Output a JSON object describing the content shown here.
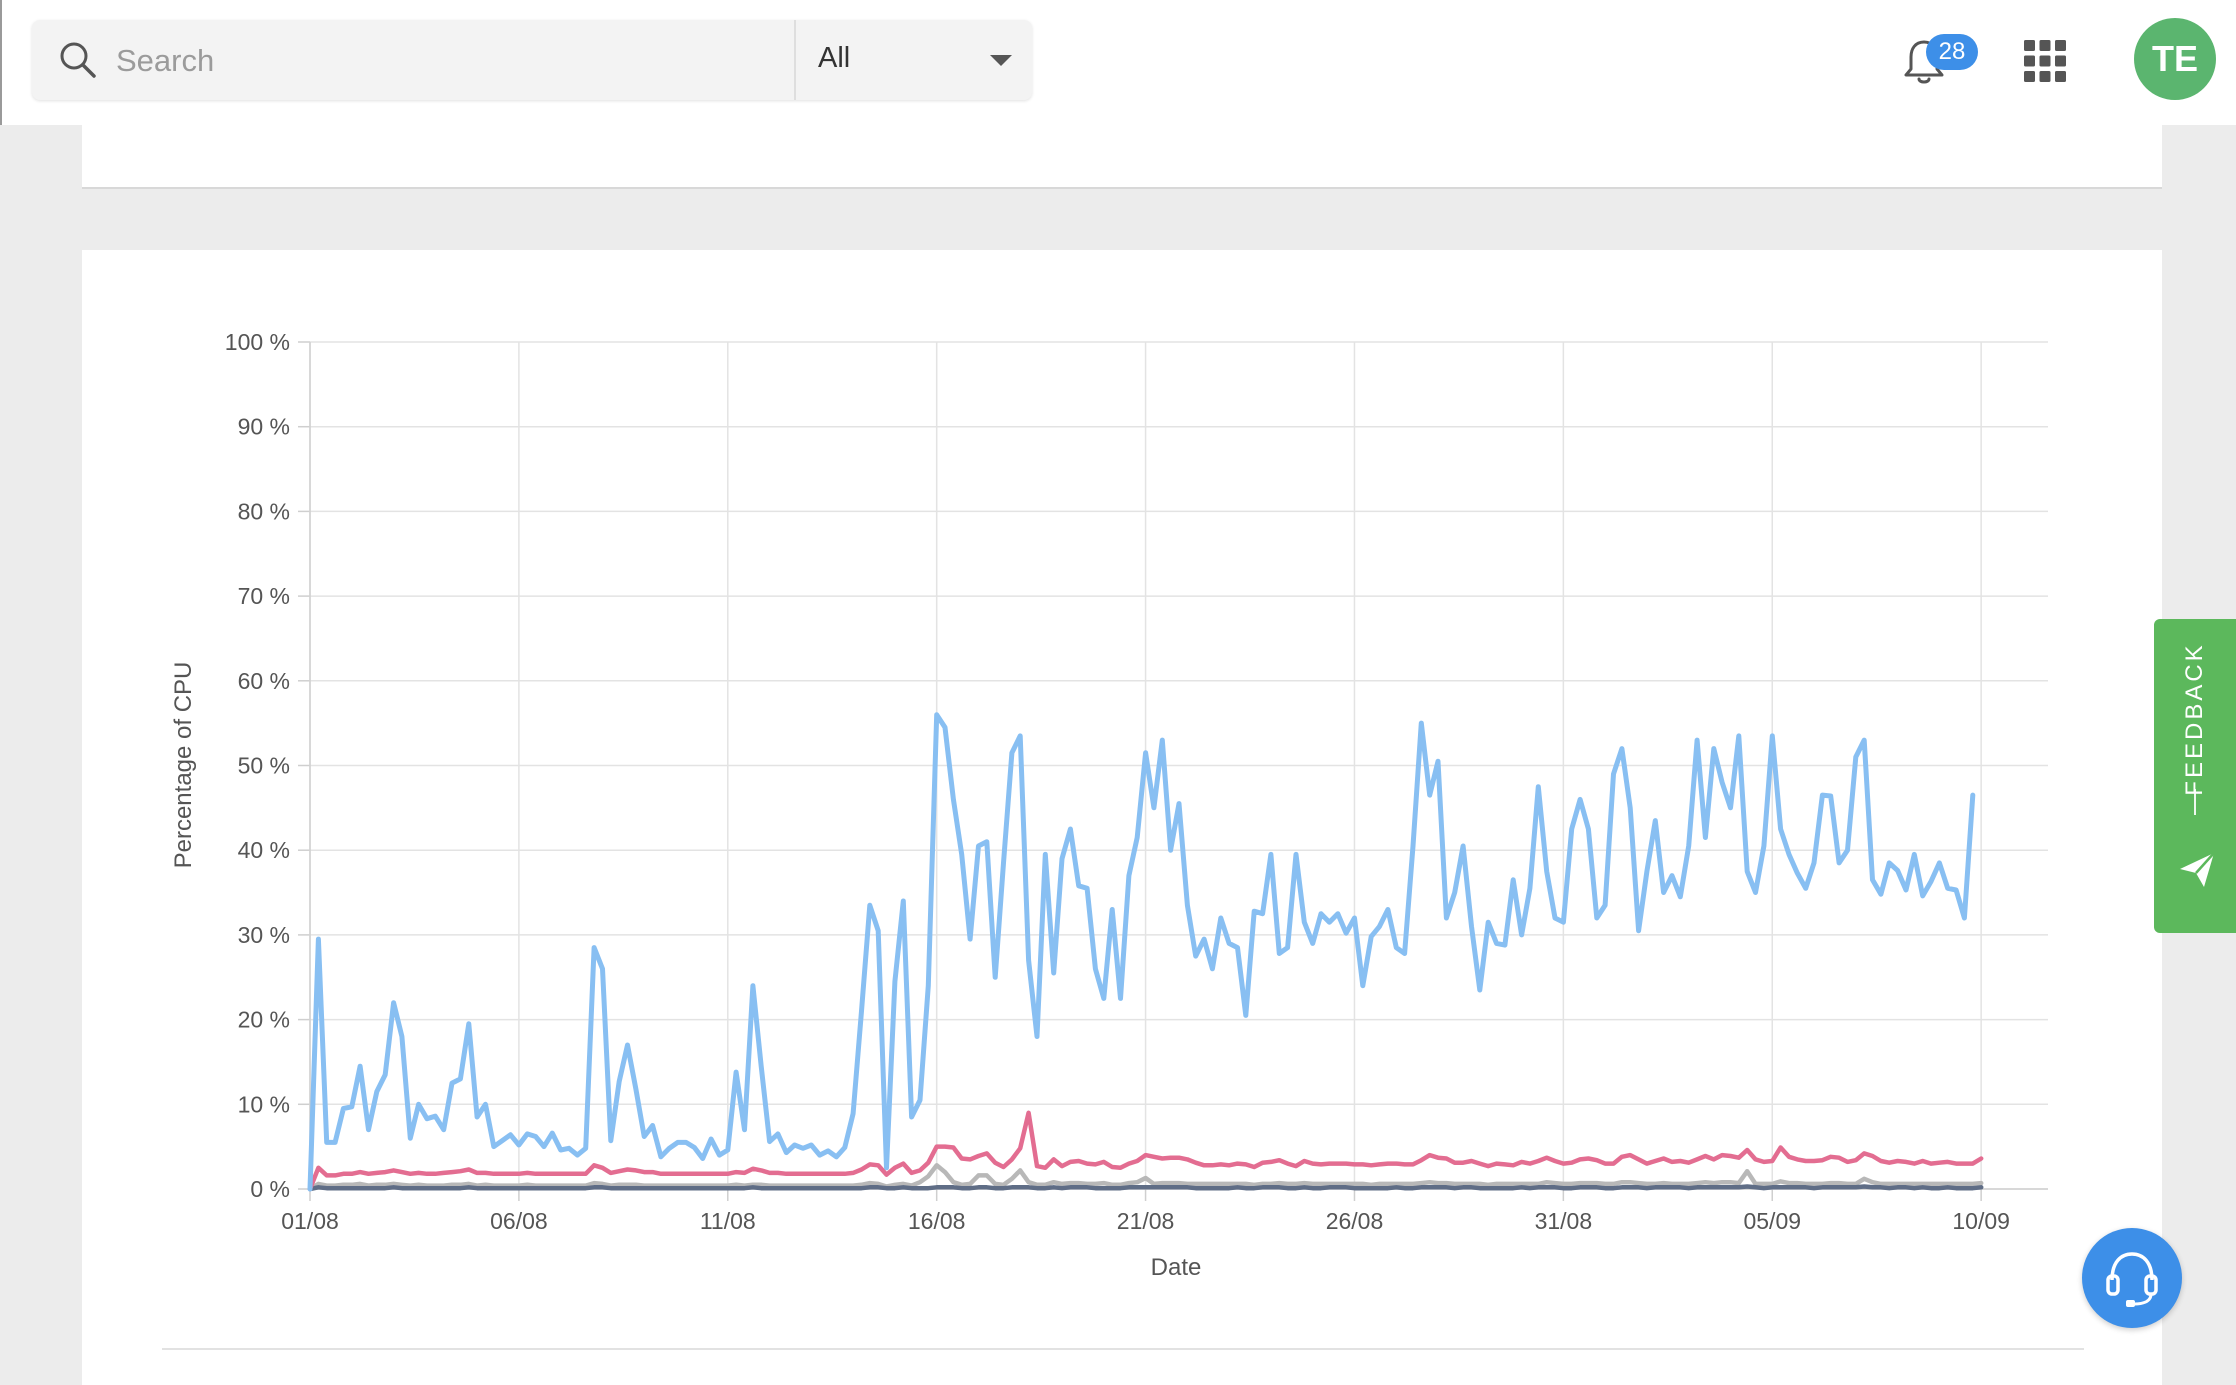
{
  "search": {
    "placeholder": "Search",
    "value": ""
  },
  "scope": {
    "selected": "All"
  },
  "notifications": {
    "count": "28"
  },
  "user": {
    "initials": "TE"
  },
  "feedback": {
    "label": "FEEDBACK"
  },
  "icons": {
    "search": "search-icon",
    "scope_chevron": "chevron-down-icon",
    "notifications": "bell-icon",
    "apps": "apps-grid-icon",
    "feedback": "send-icon",
    "support": "headset-icon"
  },
  "colors": {
    "accent": "#3d8fe8",
    "avatar": "#5bb56f",
    "feedback": "#5cb85c"
  },
  "chart_data": {
    "type": "line",
    "title": "",
    "xlabel": "Date",
    "ylabel": "Percentage of CPU",
    "x_tick_labels": [
      "01/08",
      "06/08",
      "11/08",
      "16/08",
      "21/08",
      "26/08",
      "31/08",
      "05/09",
      "10/09"
    ],
    "y_tick_labels": [
      "0 %",
      "10 %",
      "20 %",
      "30 %",
      "40 %",
      "50 %",
      "60 %",
      "70 %",
      "80 %",
      "90 %",
      "100 %"
    ],
    "ylim": [
      0,
      100
    ],
    "x_range": [
      "01/08",
      "11/09"
    ],
    "grid": true,
    "legend": "none",
    "samples_per_day": 5,
    "series": [
      {
        "color": "#88bff2",
        "values": [
          0,
          29.5,
          5.5,
          5.5,
          9.5,
          9.7,
          14.5,
          7,
          11.5,
          13.5,
          22,
          18,
          6,
          10,
          8.3,
          8.6,
          7,
          12.5,
          13,
          19.5,
          8.5,
          10,
          5,
          5.7,
          6.4,
          5.2,
          6.5,
          6.2,
          5,
          6.6,
          4.6,
          4.8,
          4,
          4.8,
          28.5,
          26,
          5.7,
          12.7,
          17,
          11.8,
          6.2,
          7.5,
          3.8,
          4.8,
          5.5,
          5.5,
          4.9,
          3.6,
          5.9,
          4,
          4.6,
          13.8,
          7,
          24,
          14.5,
          5.6,
          6.5,
          4.3,
          5.2,
          4.8,
          5.2,
          4,
          4.5,
          3.8,
          4.9,
          8.9,
          21,
          33.5,
          30.5,
          2.5,
          24.5,
          34,
          8.5,
          10.5,
          24,
          56,
          54.5,
          46,
          39.5,
          29.5,
          40.5,
          41,
          25,
          38.5,
          51.5,
          53.5,
          27,
          18,
          39.5,
          25.5,
          39,
          42.5,
          35.8,
          35.5,
          26,
          22.5,
          33,
          22.5,
          37,
          41.5,
          51.5,
          45,
          53,
          40,
          45.5,
          33.5,
          27.5,
          29.5,
          26,
          32,
          29,
          28.5,
          20.5,
          32.8,
          32.5,
          39.5,
          27.8,
          28.5,
          39.5,
          31.5,
          29,
          32.5,
          31.5,
          32.5,
          30.2,
          32,
          24,
          29.8,
          31,
          33,
          28.5,
          27.8,
          40.5,
          55,
          46.5,
          50.5,
          32,
          35,
          40.5,
          31,
          23.5,
          31.5,
          29,
          28.8,
          36.5,
          30,
          35.5,
          47.5,
          37.5,
          32,
          31.5,
          42.5,
          46,
          42.5,
          32,
          33.5,
          49,
          52,
          45,
          30.5,
          37.5,
          43.5,
          35,
          37,
          34.5,
          40.5,
          53,
          41.5,
          52,
          48,
          45,
          53.5,
          37.5,
          35,
          40.5,
          53.5,
          42.5,
          39.5,
          37.3,
          35.5,
          38.5,
          46.5,
          46.4,
          38.5,
          40,
          51,
          53,
          36.5,
          34.8,
          38.5,
          37.6,
          35.3,
          39.5,
          34.6,
          36.3,
          38.5,
          35.5,
          35.3,
          32,
          46.5
        ]
      },
      {
        "color": "#e36d91",
        "values": [
          0,
          2.5,
          1.6,
          1.6,
          1.8,
          1.8,
          2,
          1.8,
          1.9,
          2,
          2.2,
          2,
          1.8,
          1.9,
          1.8,
          1.8,
          1.9,
          2,
          2.1,
          2.3,
          1.9,
          1.9,
          1.8,
          1.8,
          1.8,
          1.8,
          1.9,
          1.8,
          1.8,
          1.8,
          1.8,
          1.8,
          1.8,
          1.8,
          2.8,
          2.5,
          1.9,
          2.1,
          2.3,
          2.2,
          2,
          2,
          1.8,
          1.8,
          1.8,
          1.8,
          1.8,
          1.8,
          1.8,
          1.8,
          1.8,
          2,
          1.9,
          2.4,
          2.2,
          1.9,
          1.9,
          1.8,
          1.8,
          1.8,
          1.8,
          1.8,
          1.8,
          1.8,
          1.8,
          1.9,
          2.3,
          2.9,
          2.8,
          1.7,
          2.5,
          3,
          1.9,
          2.2,
          3.1,
          5,
          5,
          4.9,
          3.6,
          3.5,
          3.9,
          4.2,
          3.1,
          2.6,
          3.5,
          4.8,
          9,
          2.7,
          2.5,
          3.5,
          2.7,
          3.2,
          3.3,
          3,
          2.9,
          3.2,
          2.6,
          2.5,
          3,
          3.3,
          4,
          3.8,
          3.6,
          3.7,
          3.7,
          3.5,
          3.1,
          2.8,
          2.8,
          2.9,
          2.8,
          3,
          2.9,
          2.6,
          3.1,
          3.2,
          3.4,
          3,
          2.7,
          3.3,
          3,
          2.9,
          3,
          3,
          3,
          2.9,
          2.9,
          2.8,
          2.9,
          3,
          3,
          2.9,
          2.9,
          3.4,
          4,
          3.7,
          3.6,
          3.1,
          3.1,
          3.3,
          3,
          2.7,
          3,
          2.9,
          2.8,
          3.2,
          3,
          3.3,
          3.7,
          3.3,
          3,
          3.1,
          3.5,
          3.6,
          3.4,
          3,
          3,
          3.8,
          4,
          3.5,
          3,
          3.3,
          3.6,
          3.2,
          3.3,
          3.1,
          3.5,
          3.9,
          3.5,
          4,
          3.9,
          3.7,
          4.6,
          3.5,
          3.2,
          3.3,
          4.9,
          3.8,
          3.5,
          3.3,
          3.3,
          3.4,
          3.8,
          3.7,
          3.2,
          3.4,
          4.2,
          3.9,
          3.3,
          3.1,
          3.3,
          3.2,
          3,
          3.3,
          3,
          3.1,
          3.2,
          3,
          3,
          3,
          3.6
        ]
      },
      {
        "color": "#b8b8b8",
        "values": [
          0,
          0.6,
          0.4,
          0.4,
          0.5,
          0.5,
          0.6,
          0.4,
          0.5,
          0.5,
          0.6,
          0.5,
          0.4,
          0.5,
          0.4,
          0.4,
          0.4,
          0.5,
          0.5,
          0.6,
          0.4,
          0.5,
          0.4,
          0.4,
          0.4,
          0.4,
          0.5,
          0.4,
          0.4,
          0.4,
          0.4,
          0.4,
          0.4,
          0.4,
          0.7,
          0.6,
          0.4,
          0.5,
          0.5,
          0.5,
          0.4,
          0.4,
          0.4,
          0.4,
          0.4,
          0.4,
          0.4,
          0.4,
          0.4,
          0.4,
          0.4,
          0.5,
          0.4,
          0.5,
          0.5,
          0.4,
          0.4,
          0.4,
          0.4,
          0.4,
          0.4,
          0.4,
          0.4,
          0.4,
          0.4,
          0.4,
          0.5,
          0.7,
          0.6,
          0.3,
          0.5,
          0.6,
          0.4,
          0.8,
          1.5,
          2.8,
          2,
          0.8,
          0.5,
          0.6,
          1.6,
          1.6,
          0.6,
          0.5,
          1.2,
          2.2,
          0.8,
          0.5,
          0.5,
          0.8,
          0.6,
          0.7,
          0.7,
          0.6,
          0.6,
          0.7,
          0.5,
          0.5,
          0.7,
          0.8,
          1.3,
          0.6,
          0.7,
          0.7,
          0.7,
          0.6,
          0.6,
          0.6,
          0.6,
          0.6,
          0.6,
          0.6,
          0.6,
          0.5,
          0.6,
          0.6,
          0.7,
          0.6,
          0.6,
          0.7,
          0.6,
          0.6,
          0.6,
          0.6,
          0.6,
          0.6,
          0.6,
          0.5,
          0.6,
          0.6,
          0.6,
          0.6,
          0.6,
          0.7,
          0.8,
          0.7,
          0.7,
          0.6,
          0.6,
          0.6,
          0.6,
          0.5,
          0.6,
          0.6,
          0.6,
          0.6,
          0.6,
          0.6,
          0.8,
          0.7,
          0.6,
          0.6,
          0.7,
          0.7,
          0.7,
          0.6,
          0.6,
          0.8,
          0.8,
          0.7,
          0.6,
          0.6,
          0.7,
          0.6,
          0.6,
          0.6,
          0.7,
          0.8,
          0.7,
          0.8,
          0.8,
          0.7,
          2.1,
          0.6,
          0.6,
          0.6,
          0.9,
          0.7,
          0.7,
          0.6,
          0.6,
          0.6,
          0.7,
          0.7,
          0.6,
          0.6,
          1.2,
          0.8,
          0.6,
          0.6,
          0.6,
          0.6,
          0.6,
          0.6,
          0.6,
          0.6,
          0.6,
          0.6,
          0.6,
          0.6,
          0.7
        ]
      },
      {
        "color": "#5f6d86",
        "values": [
          0,
          0.2,
          0.1,
          0.1,
          0.1,
          0.1,
          0.1,
          0.1,
          0.1,
          0.1,
          0.2,
          0.1,
          0.1,
          0.1,
          0.1,
          0.1,
          0.1,
          0.1,
          0.1,
          0.2,
          0.1,
          0.1,
          0.1,
          0.1,
          0.1,
          0.1,
          0.1,
          0.1,
          0.1,
          0.1,
          0.1,
          0.1,
          0.1,
          0.1,
          0.2,
          0.2,
          0.1,
          0.1,
          0.1,
          0.1,
          0.1,
          0.1,
          0.1,
          0.1,
          0.1,
          0.1,
          0.1,
          0.1,
          0.1,
          0.1,
          0.1,
          0.1,
          0.1,
          0.2,
          0.1,
          0.1,
          0.1,
          0.1,
          0.1,
          0.1,
          0.1,
          0.1,
          0.1,
          0.1,
          0.1,
          0.1,
          0.1,
          0.2,
          0.2,
          0.1,
          0.1,
          0.2,
          0.1,
          0.1,
          0.1,
          0.2,
          0.2,
          0.2,
          0.1,
          0.1,
          0.2,
          0.2,
          0.1,
          0.1,
          0.2,
          0.2,
          0.2,
          0.1,
          0.1,
          0.2,
          0.1,
          0.2,
          0.2,
          0.2,
          0.1,
          0.1,
          0.1,
          0.1,
          0.2,
          0.2,
          0.2,
          0.2,
          0.2,
          0.2,
          0.2,
          0.2,
          0.1,
          0.1,
          0.1,
          0.1,
          0.1,
          0.2,
          0.1,
          0.1,
          0.2,
          0.2,
          0.2,
          0.1,
          0.1,
          0.2,
          0.1,
          0.1,
          0.2,
          0.2,
          0.2,
          0.1,
          0.1,
          0.1,
          0.1,
          0.1,
          0.2,
          0.1,
          0.1,
          0.2,
          0.2,
          0.2,
          0.2,
          0.1,
          0.2,
          0.2,
          0.1,
          0.1,
          0.1,
          0.1,
          0.1,
          0.2,
          0.1,
          0.2,
          0.2,
          0.2,
          0.1,
          0.1,
          0.2,
          0.2,
          0.2,
          0.1,
          0.1,
          0.2,
          0.2,
          0.2,
          0.1,
          0.2,
          0.2,
          0.2,
          0.2,
          0.1,
          0.2,
          0.2,
          0.2,
          0.2,
          0.2,
          0.2,
          0.3,
          0.2,
          0.1,
          0.2,
          0.2,
          0.2,
          0.2,
          0.2,
          0.1,
          0.2,
          0.2,
          0.2,
          0.2,
          0.2,
          0.3,
          0.2,
          0.2,
          0.1,
          0.2,
          0.2,
          0.1,
          0.2,
          0.1,
          0.1,
          0.2,
          0.1,
          0.1,
          0.1,
          0.2
        ]
      }
    ]
  }
}
